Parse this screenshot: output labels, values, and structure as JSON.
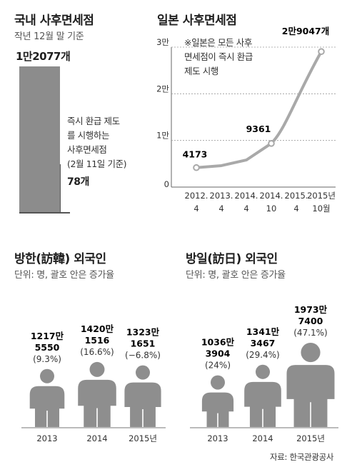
{
  "chart_data": [
    {
      "type": "bar",
      "title": "국내 사후면세점",
      "subtitle": "작년 12월 말 기준",
      "categories": [
        "작년 12월 말 기준",
        "즉시 환급 제도를 시행하는 사후면세점 (2월 11일 기준)"
      ],
      "values": [
        12077,
        78
      ],
      "value_labels": [
        "1만2077개",
        "78개"
      ],
      "note_lines": [
        "즉시 환급 제도",
        "를 시행하는",
        "사후면세점",
        "(2월 11일 기준)"
      ],
      "bar_color": "#8c8c8c"
    },
    {
      "type": "line",
      "title": "일본 사후면세점",
      "x": [
        "2012.4",
        "2013.4",
        "2014.4",
        "2014.10",
        "2015.4",
        "2015년 10월"
      ],
      "x_tick_lines": [
        [
          "2012.",
          "4"
        ],
        [
          "2013.",
          "4"
        ],
        [
          "2014.",
          "4"
        ],
        [
          "2014.",
          "10"
        ],
        [
          "2015.",
          "4"
        ],
        [
          "2015년",
          "10월"
        ]
      ],
      "y": [
        4173,
        4600,
        5800,
        9361,
        18000,
        29047
      ],
      "labeled_points": [
        {
          "index": 0,
          "label": "4173"
        },
        {
          "index": 3,
          "label": "9361"
        },
        {
          "index": 5,
          "label": "2만9047개"
        }
      ],
      "y_ticks": [
        {
          "value": 0,
          "label": "0"
        },
        {
          "value": 10000,
          "label": "1만"
        },
        {
          "value": 20000,
          "label": "2만"
        },
        {
          "value": 30000,
          "label": "3만"
        }
      ],
      "ylim": [
        0,
        30000
      ],
      "grid": "horizontal-dashed",
      "annotation_lines": [
        "※일본은 모든 사후",
        "면세점이 즉시 환급",
        "제도 시행"
      ],
      "line_color": "#a9a9a9"
    },
    {
      "type": "bar",
      "title": "방한(訪韓) 외국인",
      "subtitle": "단위: 명, 괄호 안은 증가율",
      "categories": [
        "2013",
        "2014",
        "2015년"
      ],
      "values": [
        12175550,
        14201516,
        13231651
      ],
      "growth_pct": [
        9.3,
        16.6,
        -6.8
      ],
      "label_lines": [
        [
          "1217만",
          "5550",
          "(9.3%)"
        ],
        [
          "1420만",
          "1516",
          "(16.6%)"
        ],
        [
          "1323만",
          "1651",
          "(−6.8%)"
        ]
      ],
      "marker": "person-icon"
    },
    {
      "type": "bar",
      "title": "방일(訪日) 외국인",
      "subtitle": "단위: 명, 괄호 안은 증가율",
      "categories": [
        "2013",
        "2014",
        "2015년"
      ],
      "values": [
        10363904,
        13413467,
        19737400
      ],
      "growth_pct": [
        24,
        29.4,
        47.1
      ],
      "label_lines": [
        [
          "1036만",
          "3904",
          "(24%)"
        ],
        [
          "1341만",
          "3467",
          "(29.4%)"
        ],
        [
          "1973만",
          "7400",
          "(47.1%)"
        ]
      ],
      "marker": "person-icon"
    }
  ],
  "source": "자료: 한국관광공사",
  "colors": {
    "figure": "#8e8e8e",
    "line": "#a9a9a9",
    "axis": "#555555",
    "text": "#1f1f1f"
  }
}
